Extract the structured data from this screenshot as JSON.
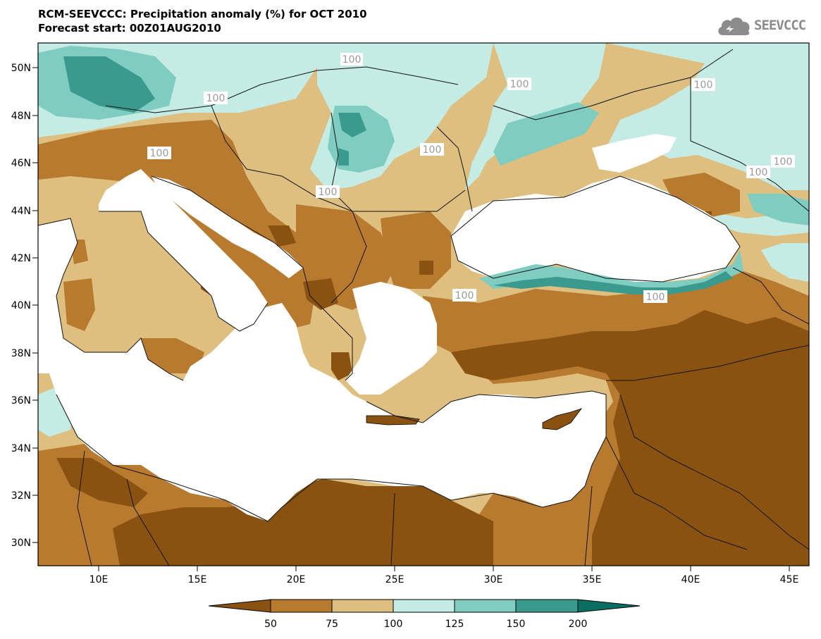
{
  "header": {
    "title": "RCM-SEEVCCC: Precipitation anomaly (%) for OCT 2010",
    "subtitle": "Forecast start: 00Z01AUG2010"
  },
  "logo": {
    "text": "SEEVCCC",
    "icon": "cloud-icon"
  },
  "map": {
    "lat_labels": [
      "50N",
      "48N",
      "46N",
      "44N",
      "42N",
      "40N",
      "38N",
      "36N",
      "34N",
      "32N",
      "30N"
    ],
    "lon_labels": [
      "10E",
      "15E",
      "20E",
      "25E",
      "30E",
      "35E",
      "40E",
      "45E"
    ],
    "contour_labels": [
      "100",
      "100",
      "100",
      "100",
      "100",
      "100",
      "100",
      "100",
      "100",
      "100",
      "100"
    ]
  },
  "legend": {
    "colors": [
      "#8a5211",
      "#b87a2e",
      "#dfbf80",
      "#c5ebe5",
      "#7fccc0",
      "#3a9a8e",
      "#0b6e62"
    ],
    "labels": [
      "50",
      "75",
      "100",
      "125",
      "150",
      "200"
    ]
  }
}
